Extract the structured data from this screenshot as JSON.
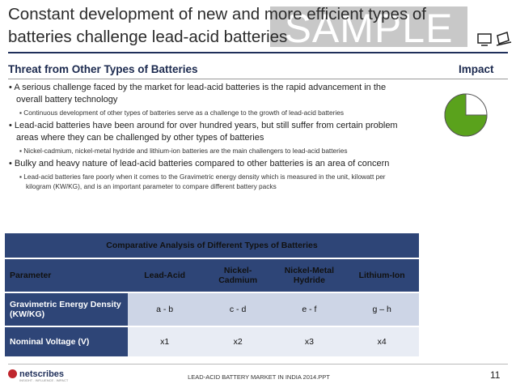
{
  "slide": {
    "title": "Constant development of new and more efficient types of batteries challenge lead-acid batteries",
    "watermark": "SAMPLE",
    "section_heading": "Threat from Other Types of Batteries",
    "impact_heading": "Impact",
    "impact_fraction": 0.75,
    "colors": {
      "navy": "#2e4577",
      "impact_fill": "#5aa21c"
    }
  },
  "bullets": [
    {
      "text": "A serious challenge faced by the market for lead-acid batteries is the rapid advancement in the overall battery technology",
      "subs": [
        "Continuous development of other types of batteries serve as a challenge to the growth of lead-acid batteries"
      ]
    },
    {
      "text": "Lead-acid batteries have been around for over hundred years, but still suffer from certain problem areas where they can be challenged by other types of batteries",
      "subs": [
        "Nickel-cadmium, nickel-metal hydride and lithium-ion batteries are the main challengers to lead-acid batteries"
      ]
    },
    {
      "text": "Bulky and heavy nature of lead-acid batteries compared to other batteries is an area of concern",
      "subs": [
        "Lead-acid batteries fare poorly when it comes to the Gravimetric energy density which is measured in the unit, kilowatt per kilogram (KW/KG), and is an important parameter to compare different battery packs"
      ]
    }
  ],
  "table": {
    "title": "Comparative Analysis of Different Types of Batteries",
    "headers": [
      "Parameter",
      "Lead-Acid",
      "Nickel-Cadmium",
      "Nickel-Metal Hydride",
      "Lithium-Ion"
    ],
    "rows": [
      [
        "Gravimetric Energy Density (KW/KG)",
        "a - b",
        "c - d",
        "e - f",
        "g – h"
      ],
      [
        "Nominal Voltage (V)",
        "x1",
        "x2",
        "x3",
        "x4"
      ]
    ]
  },
  "footer": {
    "logo_text": "netscribes",
    "logo_sub": "INSIGHT . INFLUENCE . IMPACT",
    "center_text": "LEAD-ACID BATTERY MARKET IN INDIA 2014.PPT",
    "page_number": "11"
  }
}
